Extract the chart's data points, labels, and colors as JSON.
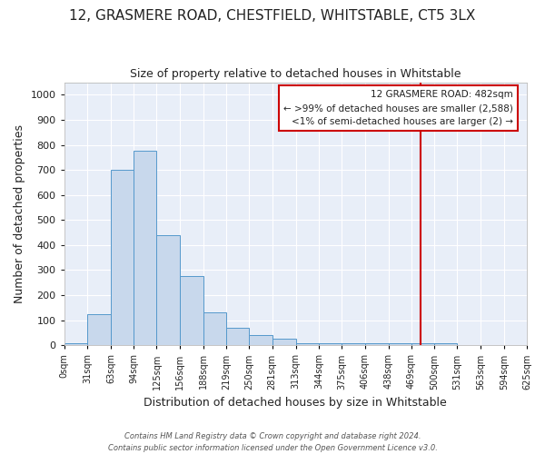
{
  "title": "12, GRASMERE ROAD, CHESTFIELD, WHITSTABLE, CT5 3LX",
  "subtitle": "Size of property relative to detached houses in Whitstable",
  "xlabel": "Distribution of detached houses by size in Whitstable",
  "ylabel": "Number of detached properties",
  "bar_color": "#c8d8ec",
  "bar_edge_color": "#5599cc",
  "background_color": "#ffffff",
  "axes_bg_color": "#e8eef8",
  "grid_color": "#ffffff",
  "bin_edges": [
    0,
    31,
    63,
    94,
    125,
    156,
    188,
    219,
    250,
    281,
    313,
    344,
    375,
    406,
    438,
    469,
    500,
    531,
    563,
    594,
    625
  ],
  "bin_labels": [
    "0sqm",
    "31sqm",
    "63sqm",
    "94sqm",
    "125sqm",
    "156sqm",
    "188sqm",
    "219sqm",
    "250sqm",
    "281sqm",
    "313sqm",
    "344sqm",
    "375sqm",
    "406sqm",
    "438sqm",
    "469sqm",
    "500sqm",
    "531sqm",
    "563sqm",
    "594sqm",
    "625sqm"
  ],
  "counts": [
    8,
    125,
    700,
    775,
    440,
    275,
    130,
    70,
    40,
    25,
    10,
    10,
    10,
    8,
    8,
    8,
    8,
    0,
    0,
    0
  ],
  "ylim": [
    0,
    1050
  ],
  "yticks": [
    0,
    100,
    200,
    300,
    400,
    500,
    600,
    700,
    800,
    900,
    1000
  ],
  "property_value": 482,
  "vline_color": "#cc0000",
  "annotation_line1": "12 GRASMERE ROAD: 482sqm",
  "annotation_line2": "← >99% of detached houses are smaller (2,588)",
  "annotation_line3": "<1% of semi-detached houses are larger (2) →",
  "annotation_box_color": "#ffffff",
  "annotation_box_edge": "#cc0000",
  "footer_line1": "Contains HM Land Registry data © Crown copyright and database right 2024.",
  "footer_line2": "Contains public sector information licensed under the Open Government Licence v3.0.",
  "font_color": "#222222",
  "title_fontsize": 11,
  "subtitle_fontsize": 9,
  "ylabel_fontsize": 9,
  "xlabel_fontsize": 9
}
